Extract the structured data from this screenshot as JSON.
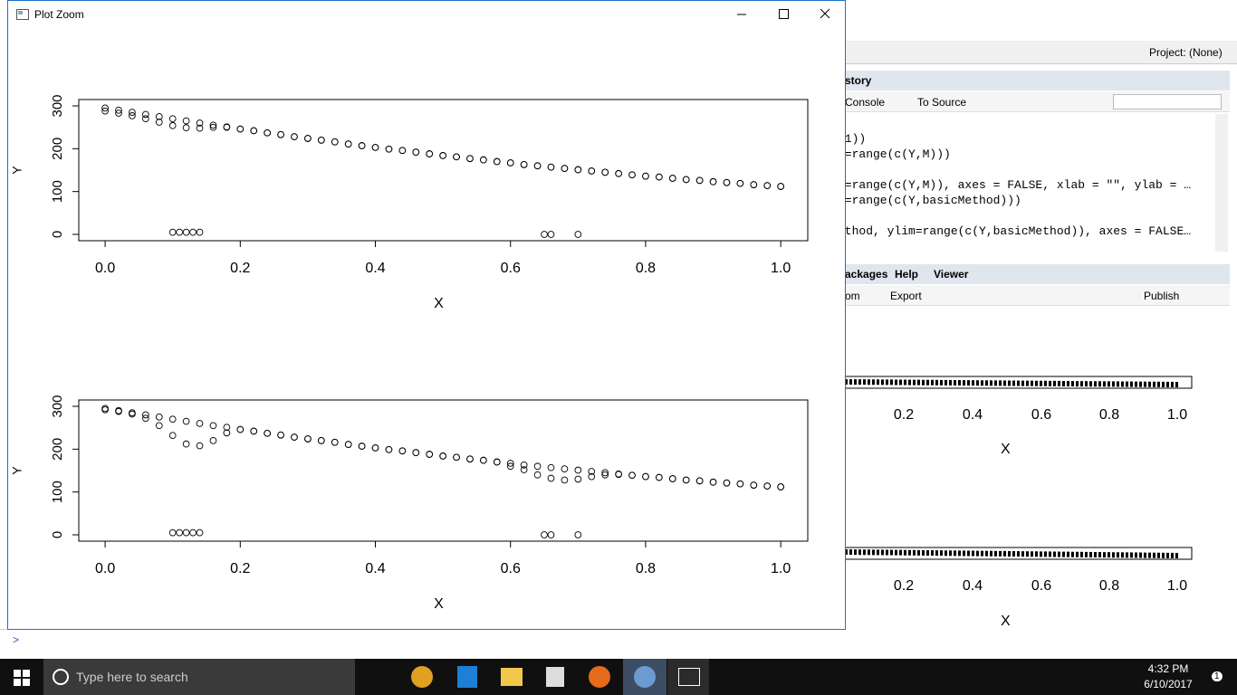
{
  "plot_window": {
    "title": "Plot Zoom"
  },
  "chart_data": [
    {
      "type": "scatter",
      "xlabel": "X",
      "ylabel": "Y",
      "xlim": [
        -0.039,
        1.04
      ],
      "ylim": [
        -14.8,
        314.8
      ],
      "xticks": [
        {
          "value": 0,
          "label": "0.0"
        },
        0.2,
        0.4,
        0.6,
        0.8,
        {
          "value": 1,
          "label": "1.0"
        }
      ],
      "yticks": [
        0,
        100,
        200,
        300
      ],
      "x": [
        0,
        0.02,
        0.04,
        0.06,
        0.08,
        0.1,
        0.12,
        0.14,
        0.16,
        0.18,
        0.2,
        0.22,
        0.24,
        0.26,
        0.28,
        0.3,
        0.32,
        0.34,
        0.36,
        0.38,
        0.4,
        0.42,
        0.44,
        0.46,
        0.48,
        0.5,
        0.52,
        0.54,
        0.56,
        0.58,
        0.6,
        0.62,
        0.64,
        0.66,
        0.68,
        0.7,
        0.72,
        0.74,
        0.76,
        0.78,
        0.8,
        0.82,
        0.84,
        0.86,
        0.88,
        0.9,
        0.92,
        0.94,
        0.96,
        0.98,
        1
      ],
      "series": [
        {
          "values": [
            295,
            290,
            285,
            280,
            275,
            270,
            265,
            260,
            255,
            251,
            246,
            242,
            237,
            233,
            228,
            224,
            220,
            216,
            211,
            207,
            203,
            199,
            196,
            192,
            188,
            184,
            181,
            177,
            174,
            170,
            167,
            163,
            160,
            157,
            154,
            151,
            148,
            145,
            142,
            139,
            136,
            134,
            131,
            128,
            126,
            123,
            121,
            119,
            116,
            114,
            112
          ]
        },
        {
          "values": [
            288,
            283,
            277,
            270,
            262,
            254,
            249,
            248,
            250,
            250,
            246,
            242,
            237,
            233,
            228,
            224,
            220,
            216,
            211,
            207,
            203,
            199,
            196,
            192,
            188,
            184,
            181,
            177,
            174,
            170,
            167,
            163,
            160,
            157,
            154,
            151,
            148,
            145,
            142,
            139,
            136,
            134,
            131,
            128,
            126,
            123,
            121,
            119,
            116,
            114,
            112
          ]
        }
      ],
      "points": {
        "x": [
          0.1,
          0.11,
          0.12,
          0.13,
          0.14,
          0.65,
          0.66,
          0.7
        ],
        "y": [
          5,
          5,
          5,
          5,
          5,
          0,
          0,
          0
        ]
      }
    },
    {
      "type": "scatter",
      "xlabel": "X",
      "ylabel": "Y",
      "xlim": [
        -0.039,
        1.04
      ],
      "ylim": [
        -14.8,
        314.8
      ],
      "xticks": [
        {
          "value": 0,
          "label": "0.0"
        },
        0.2,
        0.4,
        0.6,
        0.8,
        {
          "value": 1,
          "label": "1.0"
        }
      ],
      "yticks": [
        0,
        100,
        200,
        300
      ],
      "x": [
        0,
        0.02,
        0.04,
        0.06,
        0.08,
        0.1,
        0.12,
        0.14,
        0.16,
        0.18,
        0.2,
        0.22,
        0.24,
        0.26,
        0.28,
        0.3,
        0.32,
        0.34,
        0.36,
        0.38,
        0.4,
        0.42,
        0.44,
        0.46,
        0.48,
        0.5,
        0.52,
        0.54,
        0.56,
        0.58,
        0.6,
        0.62,
        0.64,
        0.66,
        0.68,
        0.7,
        0.72,
        0.74,
        0.76,
        0.78,
        0.8,
        0.82,
        0.84,
        0.86,
        0.88,
        0.9,
        0.92,
        0.94,
        0.96,
        0.98,
        1
      ],
      "series": [
        {
          "values": [
            295,
            290,
            285,
            280,
            275,
            270,
            265,
            260,
            255,
            251,
            246,
            242,
            237,
            233,
            228,
            224,
            220,
            216,
            211,
            207,
            203,
            199,
            196,
            192,
            188,
            184,
            181,
            177,
            174,
            170,
            167,
            163,
            160,
            157,
            154,
            151,
            148,
            145,
            142,
            139,
            136,
            134,
            131,
            128,
            126,
            123,
            121,
            119,
            116,
            114,
            112
          ]
        },
        {
          "values": [
            292,
            288,
            282,
            272,
            255,
            232,
            212,
            208,
            220,
            238,
            246,
            242,
            237,
            233,
            228,
            224,
            220,
            216,
            211,
            207,
            203,
            199,
            196,
            192,
            188,
            184,
            181,
            177,
            174,
            170,
            160,
            152,
            140,
            132,
            128,
            130,
            136,
            140,
            141,
            139,
            136,
            134,
            131,
            128,
            126,
            123,
            121,
            119,
            116,
            114,
            112
          ]
        }
      ],
      "points": {
        "x": [
          0.1,
          0.11,
          0.12,
          0.13,
          0.14,
          0.65,
          0.66,
          0.7
        ],
        "y": [
          5,
          5,
          5,
          5,
          5,
          0,
          0,
          0
        ]
      }
    }
  ],
  "rstudio": {
    "project": "Project: (None)",
    "top_tabs": [
      "story"
    ],
    "top_toolbar": [
      "Console",
      "To Source"
    ],
    "history_lines": [
      ",1))",
      "m=range(c(Y,M)))",
      "m=range(c(Y,M)), axes = FALSE, xlab = \"\", ylab = …",
      "m=range(c(Y,basicMethod)))",
      "ethod, ylim=range(c(Y,basicMethod)), axes = FALSE…"
    ],
    "bottom_tabs": [
      "ackages",
      "Help",
      "Viewer"
    ],
    "bottom_toolbar": [
      "om",
      "Export",
      "Publish"
    ],
    "background_plots": [
      {
        "xticks": [
          "0.2",
          "0.4",
          "0.6",
          "0.8",
          "1.0"
        ],
        "xlabel": "X"
      },
      {
        "xticks": [
          "0.2",
          "0.4",
          "0.6",
          "0.8",
          "1.0"
        ],
        "xlabel": "X"
      }
    ],
    "prompt": ">"
  },
  "taskbar": {
    "search": "Type here to search",
    "time": "4:32 PM",
    "date": "6/10/2017",
    "notifications": "1"
  }
}
